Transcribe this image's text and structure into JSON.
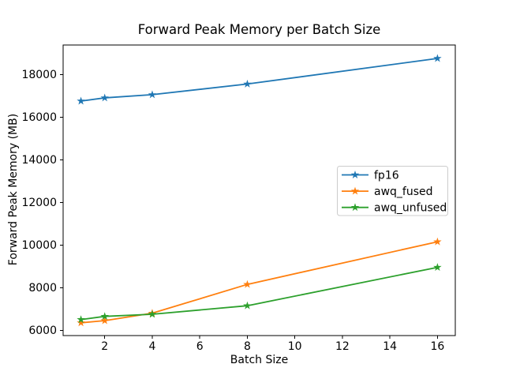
{
  "chart_data": {
    "type": "line",
    "title": "Forward Peak Memory per Batch Size",
    "xlabel": "Batch Size",
    "ylabel": "Forward Peak Memory (MB)",
    "x": [
      1,
      2,
      4,
      8,
      16
    ],
    "series": [
      {
        "name": "fp16",
        "color": "#1f77b4",
        "values": [
          16750,
          16900,
          17050,
          17550,
          18750
        ]
      },
      {
        "name": "awq_fused",
        "color": "#ff7f0e",
        "values": [
          6350,
          6450,
          6800,
          8150,
          10150
        ]
      },
      {
        "name": "awq_unfused",
        "color": "#2ca02c",
        "values": [
          6500,
          6650,
          6750,
          7150,
          8950
        ]
      }
    ],
    "marker": "star",
    "xticks": [
      2,
      4,
      6,
      8,
      10,
      12,
      14,
      16
    ],
    "yticks": [
      6000,
      8000,
      10000,
      12000,
      14000,
      16000,
      18000
    ],
    "xlim": [
      0.25,
      16.75
    ],
    "ylim": [
      5750,
      19380
    ],
    "grid": false,
    "legend_position": "center right",
    "colors": {
      "spine": "#000000",
      "legend_border": "#cccccc",
      "background": "#ffffff"
    }
  }
}
